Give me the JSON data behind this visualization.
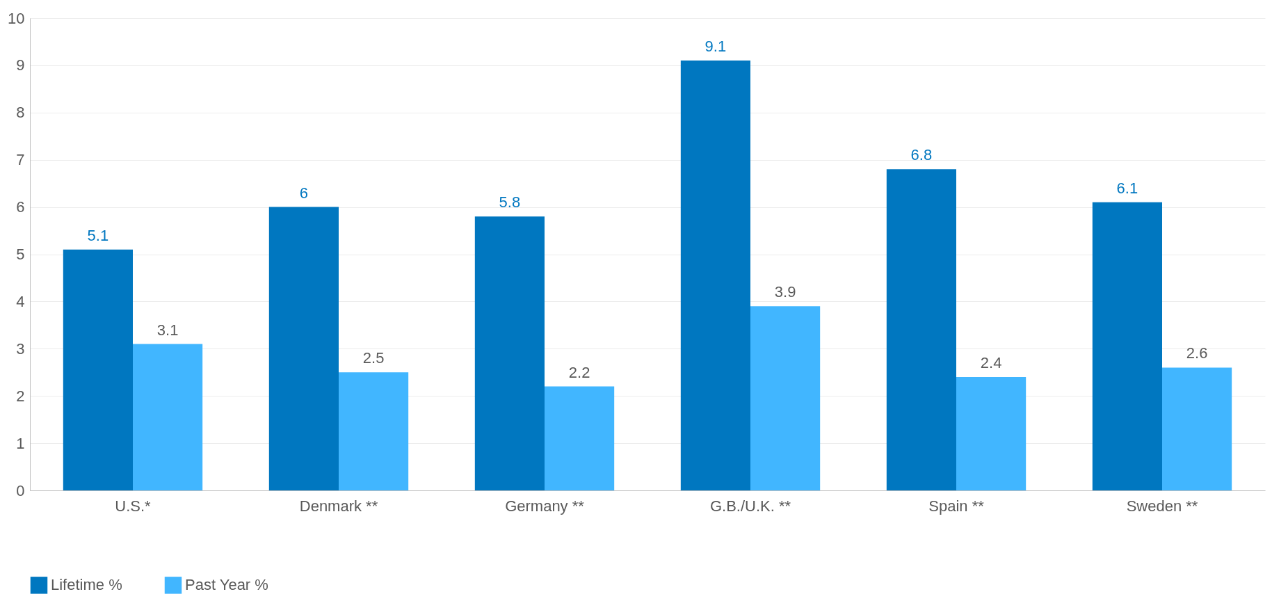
{
  "chart_data": {
    "type": "bar",
    "categories": [
      "U.S.*",
      "Denmark **",
      "Germany **",
      "G.B./U.K. **",
      "Spain **",
      "Sweden  **"
    ],
    "series": [
      {
        "name": "Lifetime %",
        "color": "#0077c0",
        "values": [
          5.1,
          6,
          5.8,
          9.1,
          6.8,
          6.1
        ]
      },
      {
        "name": "Past Year %",
        "color": "#41b6ff",
        "values": [
          3.1,
          2.5,
          2.2,
          3.9,
          2.4,
          2.6
        ]
      }
    ],
    "ylim": [
      0,
      10
    ],
    "yticks": [
      0,
      1,
      2,
      3,
      4,
      5,
      6,
      7,
      8,
      9,
      10
    ],
    "grid": "y",
    "legend": "bottom left",
    "data_labels": true
  }
}
